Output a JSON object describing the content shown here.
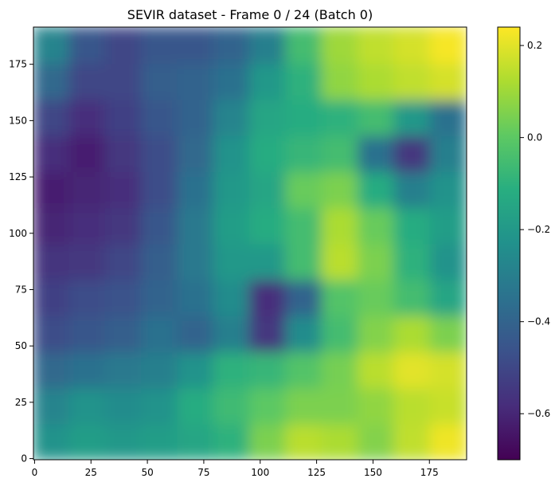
{
  "chart_data": {
    "type": "heatmap",
    "title": "SEVIR dataset - Frame 0 / 24 (Batch 0)",
    "xlabel": "",
    "ylabel": "",
    "colormap": "viridis",
    "grid": false,
    "origin": "top-left",
    "xlim": [
      -0.5,
      191.5
    ],
    "ylim": [
      191.5,
      -0.5
    ],
    "x_ticks": [
      0,
      25,
      50,
      75,
      100,
      125,
      150,
      175
    ],
    "y_ticks": [
      0,
      25,
      50,
      75,
      100,
      125,
      150,
      175
    ],
    "colorbar": {
      "vmin": -0.7,
      "vmax": 0.24,
      "ticks": [
        0.2,
        0.0,
        -0.2,
        -0.4,
        -0.6
      ],
      "tick_labels": [
        "0.2",
        "0.0",
        "−0.2",
        "−0.4",
        "−0.6"
      ]
    },
    "grid_size": [
      12,
      12
    ],
    "cell_size": 16,
    "values": [
      [
        -0.22,
        -0.18,
        -0.2,
        -0.18,
        -0.15,
        -0.1,
        0.05,
        0.14,
        0.12,
        0.06,
        0.15,
        0.22
      ],
      [
        -0.28,
        -0.22,
        -0.25,
        -0.22,
        -0.12,
        -0.06,
        0.0,
        0.05,
        0.05,
        0.08,
        0.14,
        0.16
      ],
      [
        -0.38,
        -0.35,
        -0.32,
        -0.3,
        -0.22,
        -0.1,
        -0.08,
        -0.02,
        0.04,
        0.14,
        0.2,
        0.18
      ],
      [
        -0.48,
        -0.45,
        -0.42,
        -0.35,
        -0.4,
        -0.3,
        -0.55,
        -0.25,
        -0.05,
        0.06,
        0.12,
        0.05
      ],
      [
        -0.52,
        -0.48,
        -0.46,
        -0.4,
        -0.35,
        -0.25,
        -0.58,
        -0.4,
        -0.02,
        0.02,
        -0.05,
        -0.15
      ],
      [
        -0.56,
        -0.55,
        -0.5,
        -0.42,
        -0.32,
        -0.2,
        -0.2,
        -0.05,
        0.14,
        0.05,
        -0.1,
        -0.22
      ],
      [
        -0.6,
        -0.58,
        -0.55,
        -0.45,
        -0.32,
        -0.18,
        -0.12,
        -0.05,
        0.12,
        0.02,
        -0.12,
        -0.18
      ],
      [
        -0.62,
        -0.6,
        -0.58,
        -0.48,
        -0.35,
        -0.2,
        -0.15,
        0.02,
        0.05,
        -0.12,
        -0.3,
        -0.22
      ],
      [
        -0.58,
        -0.62,
        -0.55,
        -0.48,
        -0.38,
        -0.22,
        -0.12,
        -0.08,
        -0.05,
        -0.35,
        -0.55,
        -0.3
      ],
      [
        -0.5,
        -0.58,
        -0.52,
        -0.45,
        -0.4,
        -0.28,
        -0.15,
        -0.12,
        -0.1,
        -0.05,
        -0.2,
        -0.35
      ],
      [
        -0.38,
        -0.5,
        -0.5,
        -0.42,
        -0.4,
        -0.35,
        -0.2,
        -0.1,
        0.08,
        0.12,
        0.15,
        0.18
      ],
      [
        -0.28,
        -0.45,
        -0.5,
        -0.45,
        -0.45,
        -0.4,
        -0.3,
        -0.05,
        0.1,
        0.15,
        0.18,
        0.23
      ]
    ]
  }
}
